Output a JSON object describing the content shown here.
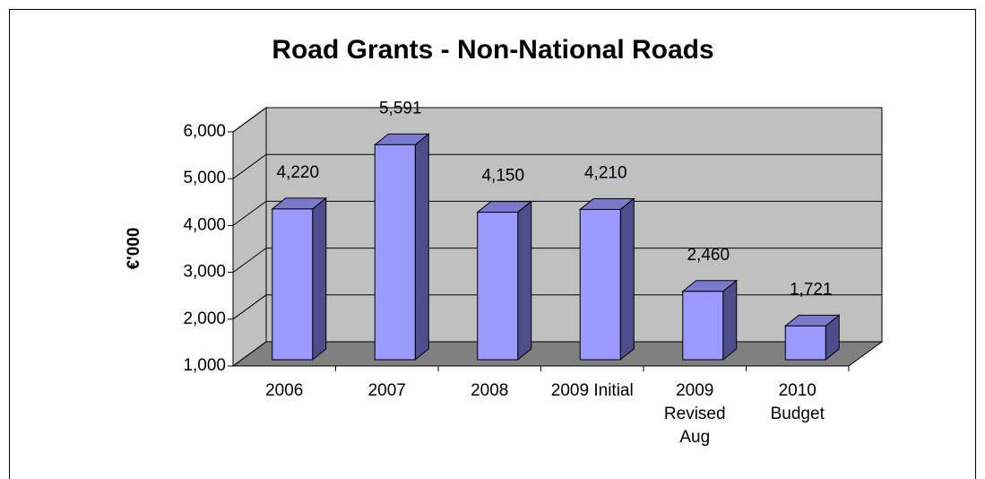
{
  "chart_data": {
    "type": "bar3d",
    "title": "Road Grants - Non-National Roads",
    "y_label": "€'000",
    "categories": [
      "2006",
      "2007",
      "2008",
      "2009 Initial",
      "2009 Revised Aug",
      "2010 Budget"
    ],
    "values": [
      4220,
      5591,
      4150,
      4210,
      2460,
      1721
    ],
    "value_labels": [
      "4,220",
      "5,591",
      "4,150",
      "4,210",
      "2,460",
      "1,721"
    ],
    "color": "#9999ff",
    "ylim": [
      1000,
      6000
    ],
    "yticks": [
      {
        "value": 1000,
        "label": "1,000"
      },
      {
        "value": 2000,
        "label": "2,000"
      },
      {
        "value": 3000,
        "label": "3,000"
      },
      {
        "value": 4000,
        "label": "4,000"
      },
      {
        "value": 5000,
        "label": "5,000"
      },
      {
        "value": 6000,
        "label": "6,000"
      }
    ],
    "grid": true
  }
}
